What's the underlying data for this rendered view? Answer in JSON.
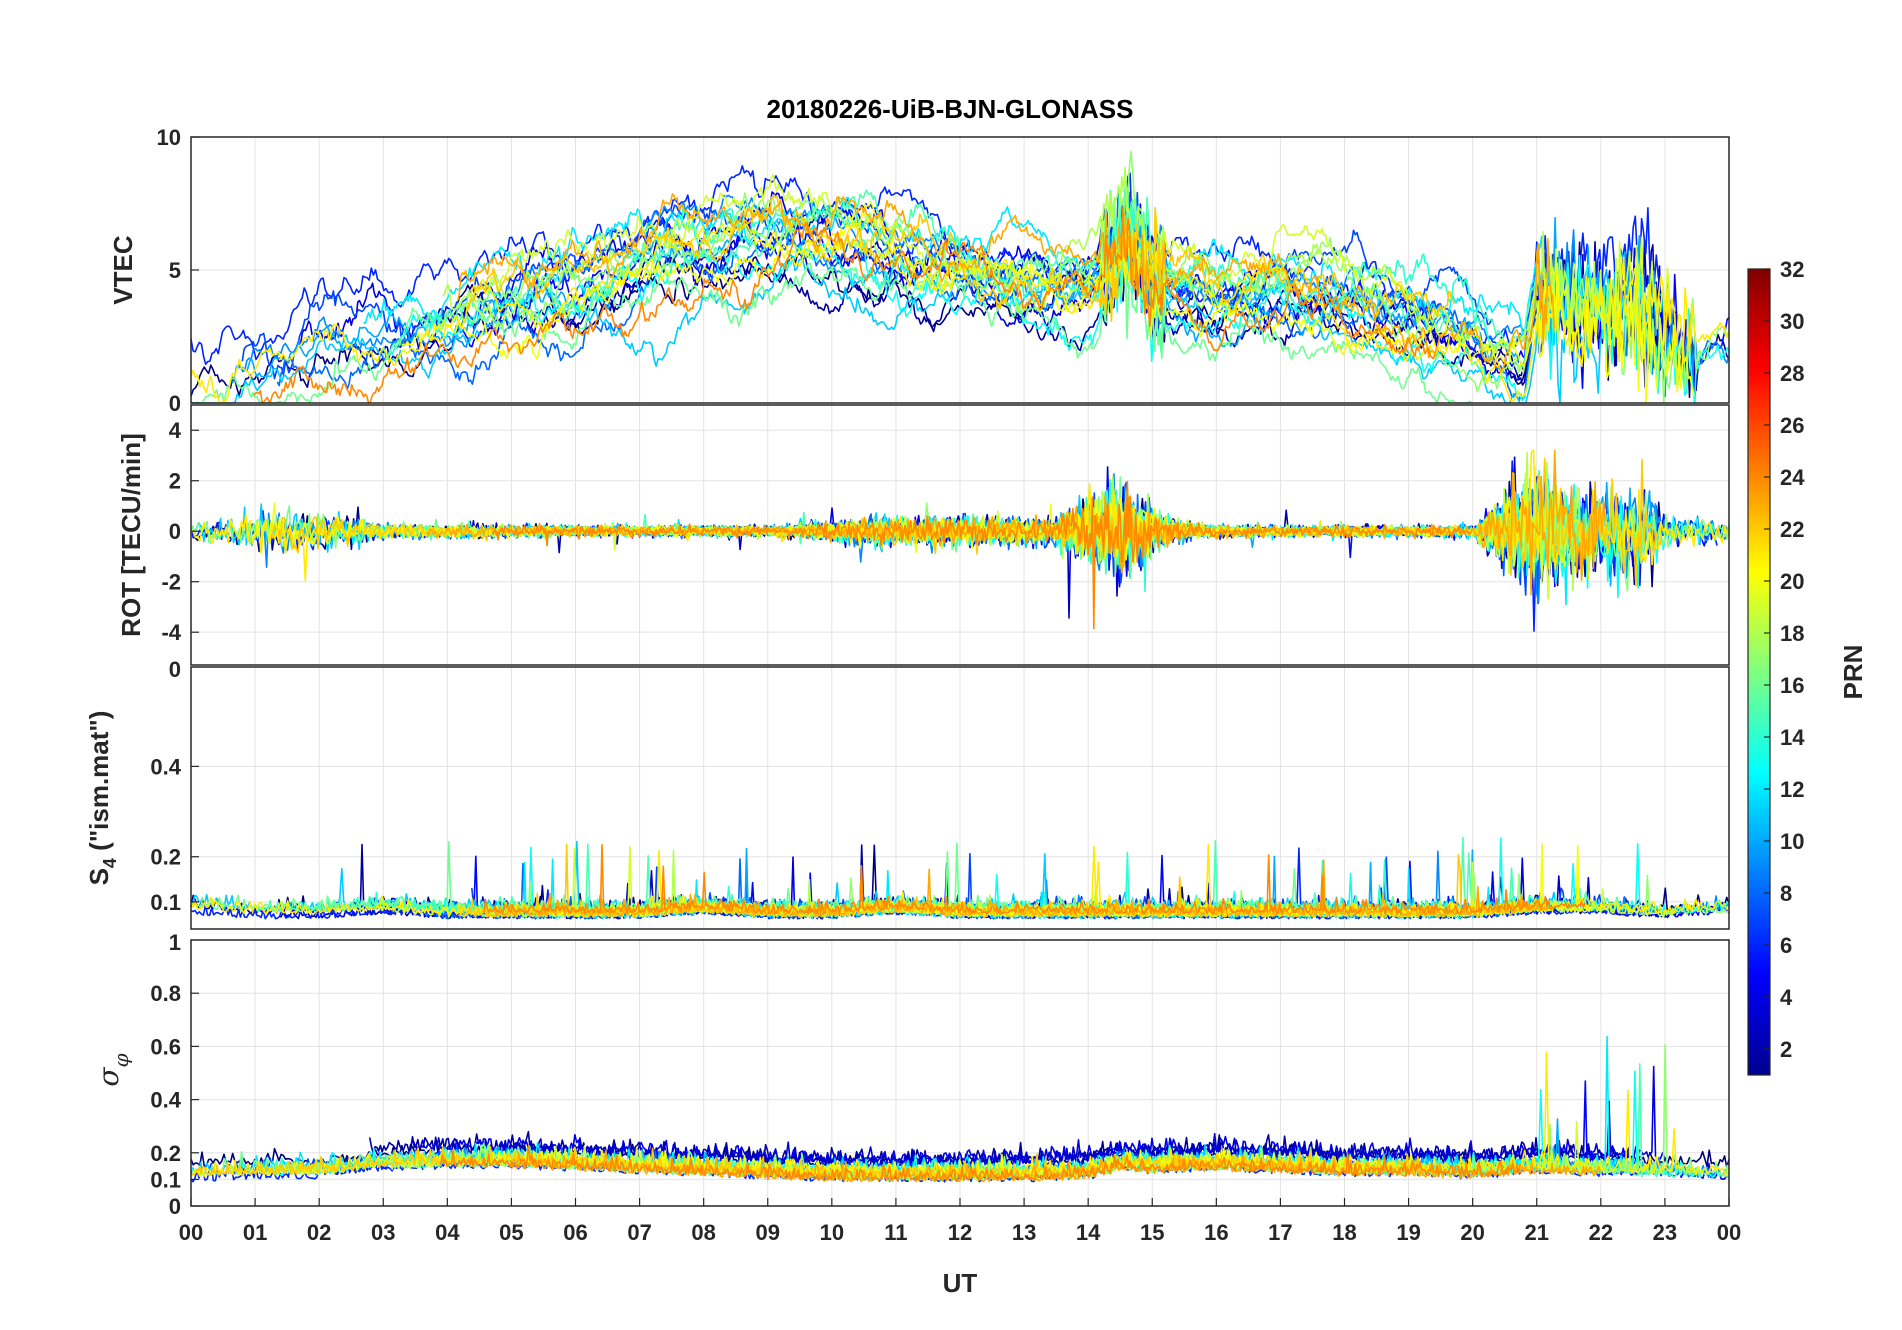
{
  "chart_data": {
    "type": "line",
    "title": "20180226-UiB-BJN-GLONASS",
    "xlabel": "UT",
    "x_ticks": [
      "00",
      "01",
      "02",
      "03",
      "04",
      "05",
      "06",
      "07",
      "08",
      "09",
      "10",
      "11",
      "12",
      "13",
      "14",
      "15",
      "16",
      "17",
      "18",
      "19",
      "20",
      "21",
      "22",
      "23",
      "00"
    ],
    "xlim_hours": [
      0,
      24
    ],
    "grid": true,
    "colorbar": {
      "label": "PRN",
      "range": [
        1,
        32
      ],
      "ticks": [
        "2",
        "4",
        "6",
        "8",
        "10",
        "12",
        "14",
        "16",
        "18",
        "20",
        "22",
        "24",
        "26",
        "28",
        "30",
        "32"
      ],
      "colormap": "jet",
      "placement": "right"
    },
    "panels": [
      {
        "name": "vtec",
        "ylabel": "VTEC",
        "ylim": [
          0,
          10
        ],
        "y_ticks": [
          "0",
          "5",
          "10"
        ],
        "y_tick_values": [
          0,
          5,
          10
        ],
        "series_envelope": {
          "x": [
            0,
            1,
            2,
            3,
            4,
            5,
            6,
            7,
            8,
            9,
            10,
            11,
            12,
            13,
            14,
            14.6,
            15,
            16,
            17,
            18,
            19,
            20,
            20.8,
            21,
            21.5,
            22,
            22.5,
            23,
            23.5,
            24
          ],
          "y": [
            1.2,
            1.2,
            2.5,
            2.6,
            3.0,
            3.8,
            4.2,
            5.0,
            5.8,
            6.5,
            6.3,
            5.6,
            5.0,
            4.5,
            4.2,
            6.5,
            4.5,
            3.8,
            4.2,
            3.6,
            3.0,
            2.2,
            1.3,
            3.8,
            3.5,
            3.6,
            3.8,
            2.8,
            1.8,
            2.5
          ]
        }
      },
      {
        "name": "rot",
        "ylabel": "ROT [TECU/min]",
        "ylim": [
          -5.3,
          5
        ],
        "y_ticks": [
          "-4",
          "-2",
          "0",
          "2",
          "4"
        ],
        "y_tick_values": [
          -4,
          -2,
          0,
          2,
          4
        ],
        "series_envelope": {
          "x": [
            0,
            1,
            2,
            3,
            6,
            9,
            10.8,
            12.3,
            13.5,
            14.5,
            15.2,
            16,
            20,
            21,
            21.5,
            22,
            22.6,
            23,
            24
          ],
          "amplitude": [
            0.3,
            0.8,
            0.7,
            0.3,
            0.2,
            0.2,
            0.5,
            0.5,
            0.5,
            1.8,
            0.5,
            0.2,
            0.2,
            2.5,
            1.8,
            1.5,
            2.0,
            0.6,
            0.4
          ]
        }
      },
      {
        "name": "s4",
        "ylabel": "S4 (\"ism.mat\")",
        "ylim": [
          0.04,
          0.62
        ],
        "y_ticks": [
          "0.1",
          "0.2",
          "0.4"
        ],
        "y_tick_values": [
          0.1,
          0.2,
          0.4
        ],
        "top_tick": "0",
        "series_envelope": {
          "x": [
            0,
            1,
            2,
            3,
            4,
            5,
            6,
            7,
            8,
            9,
            10,
            11,
            12,
            13,
            14,
            15,
            16,
            17,
            18,
            19,
            20,
            21,
            22,
            23,
            24
          ],
          "y": [
            0.08,
            0.07,
            0.07,
            0.08,
            0.07,
            0.07,
            0.07,
            0.07,
            0.08,
            0.07,
            0.07,
            0.08,
            0.07,
            0.07,
            0.07,
            0.07,
            0.07,
            0.07,
            0.07,
            0.07,
            0.07,
            0.08,
            0.08,
            0.07,
            0.08
          ]
        }
      },
      {
        "name": "sigma_phi",
        "ylabel": "σφ",
        "ylim": [
          0,
          1
        ],
        "y_ticks": [
          "0",
          "0.1",
          "0.2",
          "0.4",
          "0.6",
          "0.8"
        ],
        "y_tick_values": [
          0,
          0.1,
          0.2,
          0.4,
          0.6,
          0.8
        ],
        "top_tick": "1",
        "series_envelope": {
          "x": [
            0,
            1,
            2,
            3,
            4,
            5,
            6,
            7,
            8,
            9,
            10,
            11,
            12,
            13,
            14,
            14.6,
            15,
            16,
            17,
            18,
            19,
            20,
            21,
            22,
            23,
            24
          ],
          "y": [
            0.12,
            0.13,
            0.13,
            0.16,
            0.17,
            0.17,
            0.16,
            0.15,
            0.14,
            0.13,
            0.12,
            0.12,
            0.12,
            0.12,
            0.13,
            0.16,
            0.15,
            0.16,
            0.15,
            0.14,
            0.14,
            0.13,
            0.15,
            0.14,
            0.13,
            0.12
          ]
        }
      }
    ]
  }
}
